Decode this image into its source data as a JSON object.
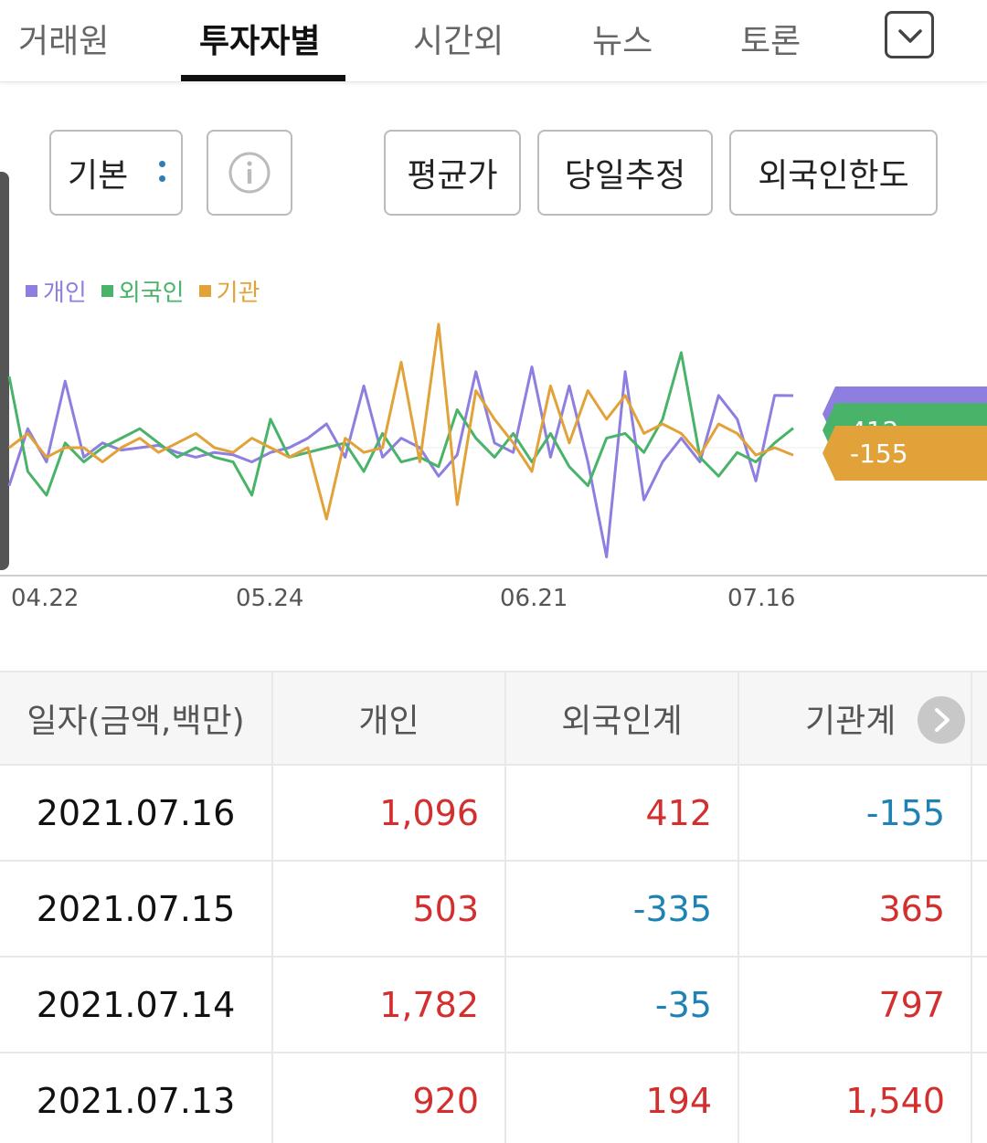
{
  "tabs": [
    "거래원",
    "투자자별",
    "시간외",
    "뉴스",
    "토론"
  ],
  "active_tab": "투자자별",
  "toolbar": {
    "default_label": "기본",
    "avg_label": "평균가",
    "estimate_label": "당일추정",
    "foreign_limit_label": "외국인한도"
  },
  "colors": {
    "individual": "#8e7ee0",
    "foreign": "#49b36a",
    "institution": "#e2a23a",
    "positive": "#d32f2f",
    "negative": "#1e82b4"
  },
  "chart_data": {
    "type": "line",
    "x_tick_labels": [
      "04.22",
      "05.24",
      "06.21",
      "07.16"
    ],
    "series": [
      {
        "name": "개인",
        "color": "#8e7ee0",
        "last_value_label": "1,096",
        "values": [
          -800,
          400,
          -300,
          1400,
          -200,
          100,
          -50,
          0,
          50,
          -100,
          -200,
          -100,
          -150,
          -300,
          -100,
          0,
          200,
          500,
          -200,
          1300,
          -200,
          200,
          0,
          -600,
          -150,
          1600,
          100,
          -100,
          1700,
          -200,
          1300,
          -300,
          -2300,
          1600,
          -1100,
          -300,
          200,
          -300,
          1100,
          600,
          -700,
          1100,
          1096
        ]
      },
      {
        "name": "외국인",
        "color": "#49b36a",
        "last_value_label": "412",
        "values": [
          1500,
          -500,
          -1000,
          100,
          -300,
          0,
          200,
          400,
          100,
          -200,
          0,
          -200,
          -300,
          -1000,
          600,
          -200,
          -100,
          0,
          100,
          -500,
          300,
          -300,
          -200,
          -400,
          800,
          200,
          -200,
          300,
          -300,
          300,
          -400,
          -800,
          200,
          300,
          -100,
          600,
          2000,
          -200,
          -600,
          -100,
          -300,
          100,
          412
        ]
      },
      {
        "name": "기관",
        "color": "#e2a23a",
        "last_value_label": "-155",
        "values": [
          0,
          300,
          -200,
          0,
          0,
          -300,
          0,
          200,
          -100,
          100,
          300,
          0,
          -100,
          200,
          0,
          -200,
          0,
          -1500,
          200,
          -100,
          0,
          1800,
          -300,
          2600,
          -1200,
          1200,
          600,
          100,
          -500,
          1300,
          100,
          1200,
          600,
          1100,
          300,
          500,
          300,
          -155,
          500,
          300,
          -155,
          0,
          -155
        ]
      }
    ]
  },
  "table": {
    "headers": [
      "일자(금액,백만)",
      "개인",
      "외국인계",
      "기관계"
    ],
    "rows": [
      {
        "date": "2021.07.16",
        "individual": "1,096",
        "foreign": "412",
        "institution": "-155"
      },
      {
        "date": "2021.07.15",
        "individual": "503",
        "foreign": "-335",
        "institution": "365"
      },
      {
        "date": "2021.07.14",
        "individual": "1,782",
        "foreign": "-35",
        "institution": "797"
      },
      {
        "date": "2021.07.13",
        "individual": "920",
        "foreign": "194",
        "institution": "1,540"
      }
    ]
  }
}
